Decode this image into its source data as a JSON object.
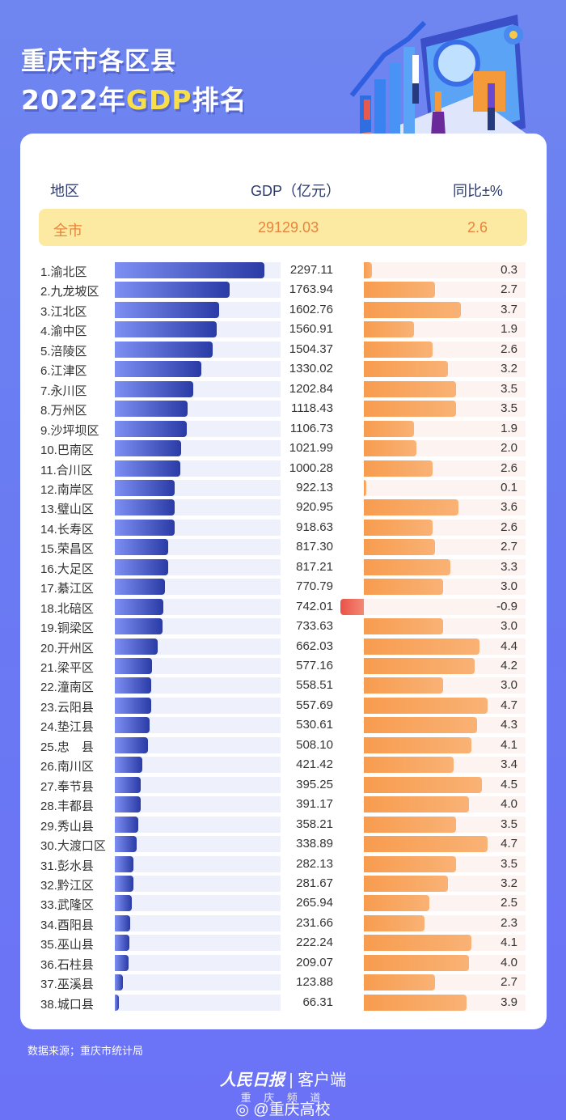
{
  "title": {
    "line1": "重庆市各区县",
    "line2_pre": "2022年",
    "line2_gdp": "GDP",
    "line2_post": "排名"
  },
  "header": {
    "region": "地区",
    "gdp": "GDP（亿元）",
    "growth": "同比±%"
  },
  "total": {
    "name": "全市",
    "gdp": "29129.03",
    "growth": "2.6"
  },
  "colors": {
    "gdp_bar": "#2b3ba6",
    "growth_bar": "#f79c4f",
    "negative_bar": "#ea5148",
    "highlight": "#fce9a2",
    "highlight_text": "#e8843b"
  },
  "chart_data": {
    "type": "bar",
    "series": [
      {
        "name": "GDP（亿元）"
      },
      {
        "name": "同比±%"
      }
    ],
    "rows": [
      {
        "label": "1.渝北区",
        "gdp": "2297.11",
        "growth": "0.3"
      },
      {
        "label": "2.九龙坡区",
        "gdp": "1763.94",
        "growth": "2.7"
      },
      {
        "label": "3.江北区",
        "gdp": "1602.76",
        "growth": "3.7"
      },
      {
        "label": "4.渝中区",
        "gdp": "1560.91",
        "growth": "1.9"
      },
      {
        "label": "5.涪陵区",
        "gdp": "1504.37",
        "growth": "2.6"
      },
      {
        "label": "6.江津区",
        "gdp": "1330.02",
        "growth": "3.2"
      },
      {
        "label": "7.永川区",
        "gdp": "1202.84",
        "growth": "3.5"
      },
      {
        "label": "8.万州区",
        "gdp": "1118.43",
        "growth": "3.5"
      },
      {
        "label": "9.沙坪坝区",
        "gdp": "1106.73",
        "growth": "1.9"
      },
      {
        "label": "10.巴南区",
        "gdp": "1021.99",
        "growth": "2.0"
      },
      {
        "label": "11.合川区",
        "gdp": "1000.28",
        "growth": "2.6"
      },
      {
        "label": "12.南岸区",
        "gdp": "922.13",
        "growth": "0.1"
      },
      {
        "label": "13.璧山区",
        "gdp": "920.95",
        "growth": "3.6"
      },
      {
        "label": "14.长寿区",
        "gdp": "918.63",
        "growth": "2.6"
      },
      {
        "label": "15.荣昌区",
        "gdp": "817.30",
        "growth": "2.7"
      },
      {
        "label": "16.大足区",
        "gdp": "817.21",
        "growth": "3.3"
      },
      {
        "label": "17.綦江区",
        "gdp": "770.79",
        "growth": "3.0"
      },
      {
        "label": "18.北碚区",
        "gdp": "742.01",
        "growth": "-0.9"
      },
      {
        "label": "19.铜梁区",
        "gdp": "733.63",
        "growth": "3.0"
      },
      {
        "label": "20.开州区",
        "gdp": "662.03",
        "growth": "4.4"
      },
      {
        "label": "21.梁平区",
        "gdp": "577.16",
        "growth": "4.2"
      },
      {
        "label": "22.潼南区",
        "gdp": "558.51",
        "growth": "3.0"
      },
      {
        "label": "23.云阳县",
        "gdp": "557.69",
        "growth": "4.7"
      },
      {
        "label": "24.垫江县",
        "gdp": "530.61",
        "growth": "4.3"
      },
      {
        "label": "25.忠　县",
        "gdp": "508.10",
        "growth": "4.1"
      },
      {
        "label": "26.南川区",
        "gdp": "421.42",
        "growth": "3.4"
      },
      {
        "label": "27.奉节县",
        "gdp": "395.25",
        "growth": "4.5"
      },
      {
        "label": "28.丰都县",
        "gdp": "391.17",
        "growth": "4.0"
      },
      {
        "label": "29.秀山县",
        "gdp": "358.21",
        "growth": "3.5"
      },
      {
        "label": "30.大渡口区",
        "gdp": "338.89",
        "growth": "4.7"
      },
      {
        "label": "31.彭水县",
        "gdp": "282.13",
        "growth": "3.5"
      },
      {
        "label": "32.黔江区",
        "gdp": "281.67",
        "growth": "3.2"
      },
      {
        "label": "33.武隆区",
        "gdp": "265.94",
        "growth": "2.5"
      },
      {
        "label": "34.酉阳县",
        "gdp": "231.66",
        "growth": "2.3"
      },
      {
        "label": "35.巫山县",
        "gdp": "222.24",
        "growth": "4.1"
      },
      {
        "label": "36.石柱县",
        "gdp": "209.07",
        "growth": "4.0"
      },
      {
        "label": "37.巫溪县",
        "gdp": "123.88",
        "growth": "2.7"
      },
      {
        "label": "38.城口县",
        "gdp": "66.31",
        "growth": "3.9"
      }
    ]
  },
  "footer": {
    "source": "数据来源；重庆市统计局",
    "logo_brand": "人民日报",
    "logo_suffix": "客户端",
    "channel": "重 庆 频 道",
    "weibo": "@重庆高校"
  }
}
